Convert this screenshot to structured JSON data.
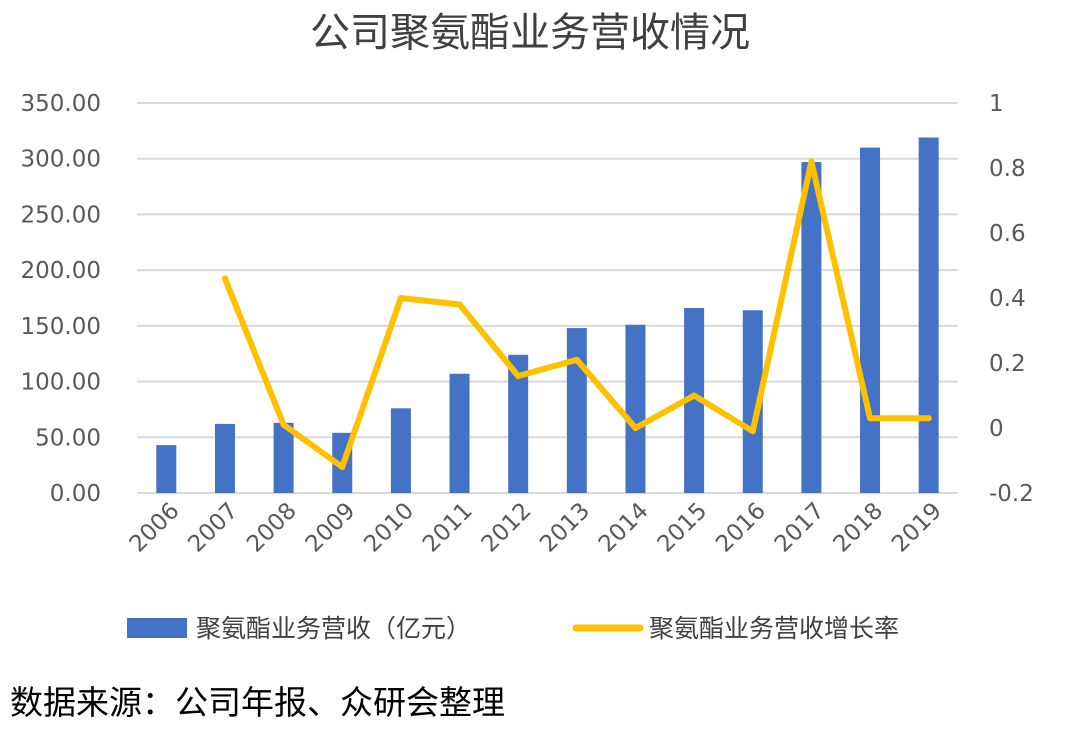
{
  "source_note": "数据来源：公司年报、众研会整理",
  "chart_data": {
    "type": "bar",
    "title": "公司聚氨酯业务营收情况",
    "categories": [
      "2006",
      "2007",
      "2008",
      "2009",
      "2010",
      "2011",
      "2012",
      "2013",
      "2014",
      "2015",
      "2016",
      "2017",
      "2018",
      "2019"
    ],
    "series": [
      {
        "name": "聚氨酯业务营收（亿元）",
        "type": "bar",
        "axis": "left",
        "color": "#4472C4",
        "values": [
          43,
          62,
          63,
          54,
          76,
          107,
          124,
          148,
          151,
          166,
          164,
          297,
          310,
          319
        ]
      },
      {
        "name": "聚氨酯业务营收增长率",
        "type": "line",
        "axis": "right",
        "color": "#FFC000",
        "values": [
          null,
          0.46,
          0.01,
          -0.12,
          0.4,
          0.38,
          0.16,
          0.21,
          0.0,
          0.1,
          -0.01,
          0.82,
          0.03,
          0.03
        ]
      }
    ],
    "y_left": {
      "range": [
        0,
        350
      ],
      "ticks": [
        "0.00",
        "50.00",
        "100.00",
        "150.00",
        "200.00",
        "250.00",
        "300.00",
        "350.00"
      ]
    },
    "y_right": {
      "range": [
        -0.2,
        1
      ],
      "ticks": [
        "-0.2",
        "0",
        "0.2",
        "0.4",
        "0.6",
        "0.8",
        "1"
      ]
    },
    "grid": true,
    "legend_position": "bottom"
  }
}
